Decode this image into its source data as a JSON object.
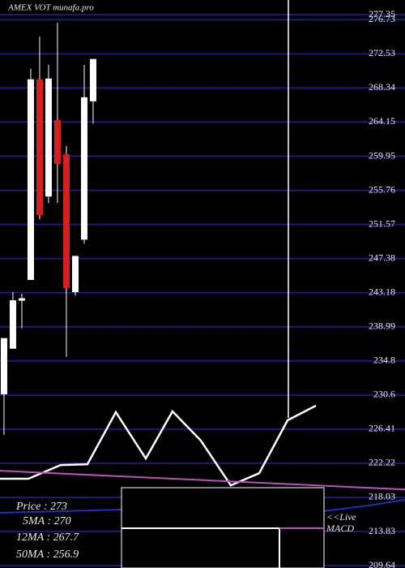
{
  "chart_data": {
    "type": "candlestick",
    "title": "AMEX  VOT munafa.pro",
    "background": "#000000",
    "grid": true,
    "grid_color": "#1c1c78",
    "up_color": "#ffffff",
    "down_color": "#d42020",
    "xlim": [
      -0.45,
      45
    ],
    "ylim": [
      209.35,
      279.15
    ],
    "yticks": [
      277.35,
      276.73,
      272.53,
      268.34,
      264.15,
      259.95,
      255.76,
      251.57,
      247.38,
      243.18,
      238.99,
      234.8,
      230.6,
      226.41,
      222.22,
      218.03,
      213.83,
      209.64
    ],
    "open": [
      230.7,
      236.3,
      242.2,
      244.75,
      269.4,
      255.0,
      264.4,
      260.2,
      243.25,
      249.7,
      266.7
    ],
    "close": [
      237.6,
      242.25,
      242.5,
      269.4,
      252.7,
      269.5,
      259.0,
      243.75,
      247.7,
      267.2,
      271.9
    ],
    "high": [
      237.6,
      243.25,
      243.05,
      270.7,
      274.65,
      271.2,
      276.35,
      261.2,
      247.7,
      271.2,
      271.9
    ],
    "low": [
      225.7,
      236.3,
      238.8,
      244.75,
      252.2,
      254.2,
      254.2,
      235.3,
      242.8,
      249.2,
      263.95
    ],
    "lines": [
      {
        "color": "#ffffff",
        "x": [
          -0.45,
          2.73,
          6.36,
          9.36,
          12.55,
          15.91,
          18.91,
          22.09,
          25.45,
          28.64,
          31.82,
          35
        ],
        "values": [
          220.32,
          220.32,
          222.0,
          222.1,
          228.5,
          222.8,
          228.6,
          225.0,
          219.5,
          221.0,
          227.5,
          229.3
        ]
      },
      {
        "color": "#c050c0",
        "x": [
          -0.45,
          45
        ],
        "values": [
          221.3,
          219.0
        ]
      },
      {
        "color": "#2030c0",
        "x": [
          -0.45,
          13.18,
          35.9,
          41.4,
          45
        ],
        "values": [
          216.13,
          216.53,
          216.33,
          217.1,
          217.75
        ]
      }
    ],
    "legend": [
      "Price   : 273",
      "5MA : 270",
      "12MA : 267.7",
      "50MA : 256.9"
    ],
    "annotation": [
      "<<Live",
      "MACD"
    ]
  }
}
